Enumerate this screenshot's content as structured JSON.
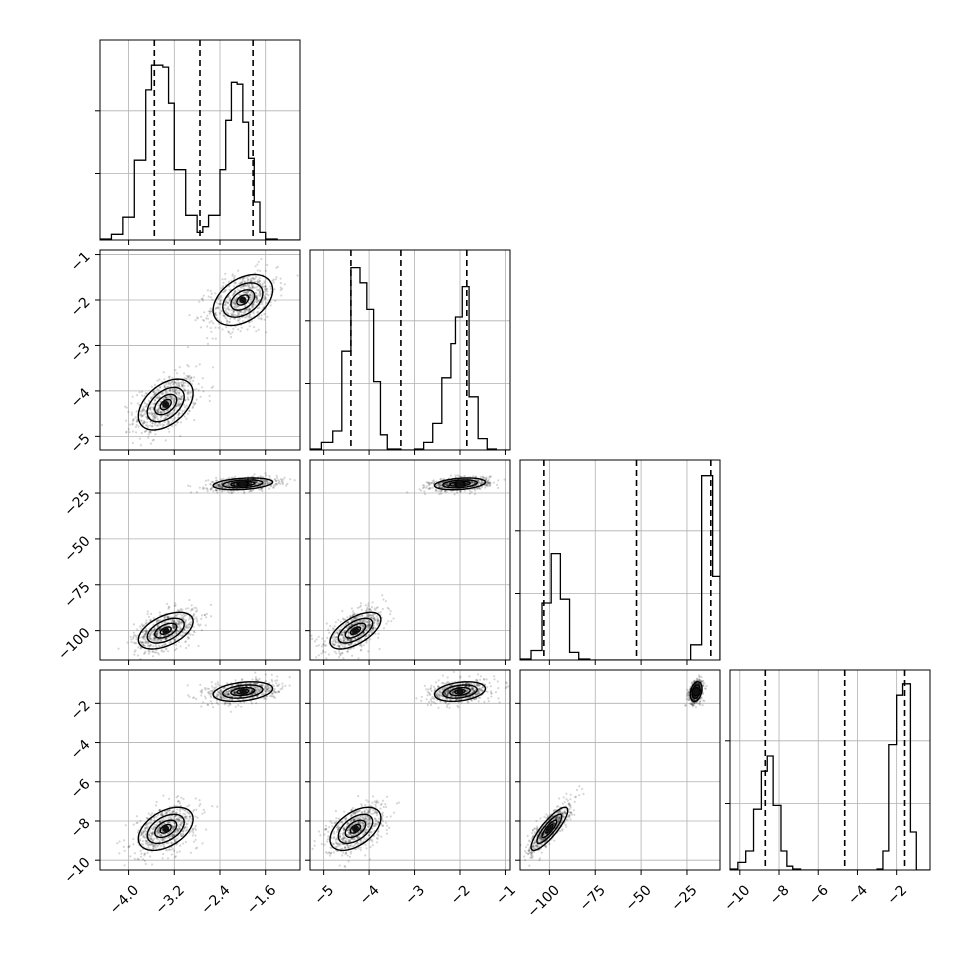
{
  "chart_data": {
    "type": "corner",
    "grid": true,
    "parameters": [
      {
        "range": [
          -4.5,
          -1.0
        ],
        "ticks": [
          -4.0,
          -3.2,
          -2.4,
          -1.6
        ],
        "tick_labels": [
          "−4.0",
          "−3.2",
          "−2.4",
          "−1.6"
        ],
        "quantiles": [
          -3.55,
          -2.75,
          -1.82
        ],
        "hist_bins": [
          -4.5,
          -4.3,
          -4.1,
          -3.9,
          -3.7,
          -3.6,
          -3.5,
          -3.4,
          -3.3,
          -3.2,
          -3.0,
          -2.8,
          -2.7,
          -2.6,
          -2.4,
          -2.3,
          -2.2,
          -2.1,
          -2.0,
          -1.9,
          -1.8,
          -1.7,
          -1.6,
          -1.4,
          -1.2,
          -1.0
        ],
        "hist_counts": [
          0.005,
          0.03,
          0.12,
          0.42,
          0.79,
          0.92,
          0.92,
          0.91,
          0.72,
          0.37,
          0.13,
          0.04,
          0.07,
          0.13,
          0.37,
          0.63,
          0.83,
          0.82,
          0.62,
          0.43,
          0.2,
          0.04,
          0.005,
          0.0,
          0.0
        ]
      },
      {
        "range": [
          -5.3,
          -0.9
        ],
        "ticks": [
          -5,
          -4,
          -3,
          -2,
          -1
        ],
        "tick_labels": [
          "−5",
          "−4",
          "−3",
          "−2",
          "−1"
        ],
        "quantiles": [
          -4.4,
          -3.3,
          -1.85
        ],
        "hist_bins": [
          -5.3,
          -5.05,
          -4.8,
          -4.6,
          -4.4,
          -4.2,
          -4.05,
          -3.9,
          -3.75,
          -3.6,
          -3.3,
          -3.0,
          -2.8,
          -2.6,
          -2.4,
          -2.2,
          -2.1,
          -1.95,
          -1.8,
          -1.6,
          -1.4,
          -1.2,
          -0.9
        ],
        "hist_counts": [
          0.005,
          0.04,
          0.1,
          0.52,
          0.96,
          0.88,
          0.74,
          0.36,
          0.08,
          0.005,
          0.0,
          0.005,
          0.04,
          0.14,
          0.38,
          0.56,
          0.7,
          0.86,
          0.28,
          0.06,
          0.005,
          0.0
        ]
      },
      {
        "range": [
          -116,
          -7
        ],
        "ticks": [
          -100,
          -75,
          -50,
          -25
        ],
        "tick_labels": [
          "−100",
          "−75",
          "−50",
          "−25"
        ],
        "quantiles": [
          -103,
          -52.5,
          -12
        ],
        "hist_bins": [
          -116,
          -110,
          -104,
          -99,
          -94,
          -89,
          -84,
          -78,
          -72,
          -66,
          -60,
          -54,
          -48,
          -42,
          -36,
          -30,
          -23,
          -17,
          -11,
          -7
        ],
        "hist_counts": [
          0.005,
          0.05,
          0.3,
          0.56,
          0.32,
          0.04,
          0.005,
          0.0,
          0.0,
          0.0,
          0.0,
          0.0,
          0.0,
          0.0,
          0.0,
          0.0,
          0.08,
          0.97,
          0.44
        ]
      },
      {
        "range": [
          -10.5,
          -0.3
        ],
        "ticks": [
          -10,
          -8,
          -6,
          -4,
          -2
        ],
        "tick_labels": [
          "−10",
          "−8",
          "−6",
          "−4",
          "−2"
        ],
        "quantiles": [
          -8.7,
          -4.65,
          -1.6
        ],
        "hist_bins": [
          -10.5,
          -10.1,
          -9.7,
          -9.3,
          -8.9,
          -8.6,
          -8.3,
          -7.9,
          -7.6,
          -7.3,
          -6.9,
          -6.5,
          -3.0,
          -2.7,
          -2.4,
          -2.0,
          -1.7,
          -1.3,
          -1.0,
          -0.6,
          -0.3
        ],
        "hist_counts": [
          0.005,
          0.04,
          0.1,
          0.32,
          0.52,
          0.6,
          0.34,
          0.1,
          0.02,
          0.005,
          0.0,
          0.0,
          0.005,
          0.1,
          0.66,
          0.92,
          0.98,
          0.2,
          0.0,
          0.0
        ]
      }
    ],
    "modes": [
      {
        "center": [
          -3.35,
          -4.3,
          -100,
          -8.4
        ],
        "sd": [
          0.24,
          0.28,
          5.0,
          0.55
        ],
        "corr": [
          [
            1,
            0.45,
            0.5,
            0.45
          ],
          [
            0.45,
            1,
            0.6,
            0.5
          ],
          [
            0.5,
            0.6,
            1,
            0.85
          ],
          [
            0.45,
            0.5,
            0.85,
            1
          ]
        ]
      },
      {
        "center": [
          -2.0,
          -2.0,
          -20,
          -1.4
        ],
        "sd": [
          0.26,
          0.28,
          1.6,
          0.25
        ],
        "corr": [
          [
            1,
            0.4,
            0.3,
            0.3
          ],
          [
            0.4,
            1,
            0.3,
            0.3
          ],
          [
            0.3,
            0.3,
            1,
            0.3
          ],
          [
            0.3,
            0.3,
            0.3,
            1
          ]
        ]
      }
    ]
  }
}
